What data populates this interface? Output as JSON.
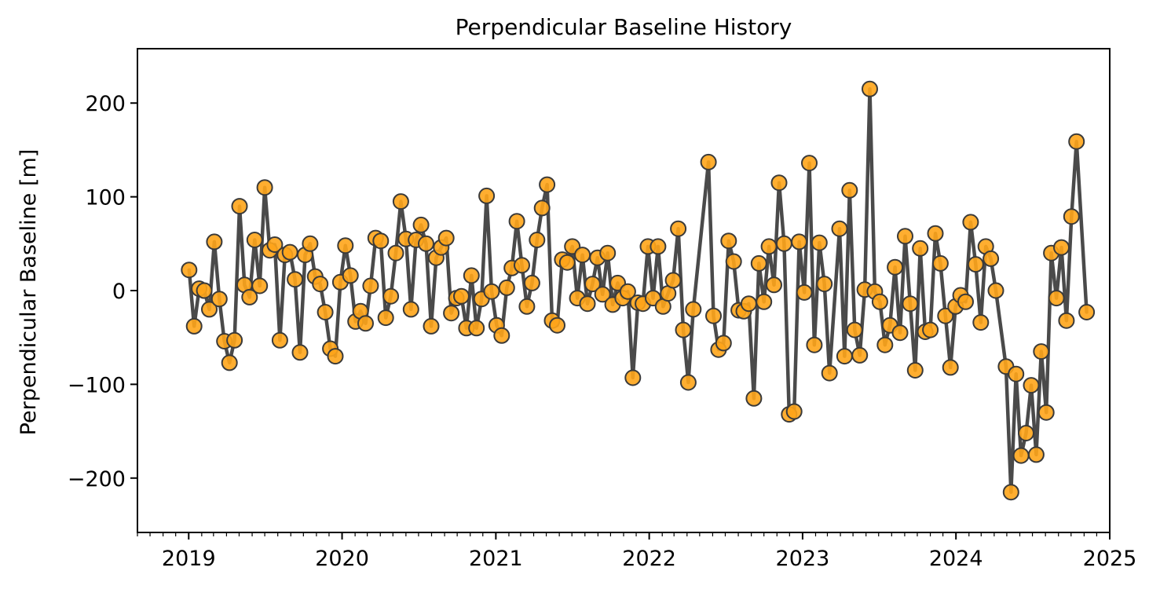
{
  "chart_data": {
    "type": "scatter",
    "title": "Perpendicular Baseline History",
    "xlabel": "",
    "ylabel": "Perpendicular Baseline [m]",
    "xlim": [
      "2018-09-01",
      "2025-01-01"
    ],
    "ylim": [
      -258,
      258
    ],
    "x_ticks": [
      "2019",
      "2020",
      "2021",
      "2022",
      "2023",
      "2024",
      "2025"
    ],
    "y_ticks": [
      {
        "value": -200,
        "label": "−200"
      },
      {
        "value": -100,
        "label": "−100"
      },
      {
        "value": 0,
        "label": "0"
      },
      {
        "value": 100,
        "label": "100"
      },
      {
        "value": 200,
        "label": "200"
      }
    ],
    "grid": false,
    "legend": "none",
    "colors": {
      "line": "#4a4a4a",
      "marker_fill": "#ffa51a",
      "marker_edge": "#3a3a3a"
    },
    "series": [
      {
        "points": [
          {
            "x": "2019-01-02",
            "y": 22
          },
          {
            "x": "2019-01-14",
            "y": -38
          },
          {
            "x": "2019-01-26",
            "y": 2
          },
          {
            "x": "2019-02-07",
            "y": 0
          },
          {
            "x": "2019-02-19",
            "y": -20
          },
          {
            "x": "2019-03-03",
            "y": 52
          },
          {
            "x": "2019-03-15",
            "y": -9
          },
          {
            "x": "2019-03-27",
            "y": -54
          },
          {
            "x": "2019-04-08",
            "y": -77
          },
          {
            "x": "2019-04-20",
            "y": -53
          },
          {
            "x": "2019-05-02",
            "y": 90
          },
          {
            "x": "2019-05-14",
            "y": 6
          },
          {
            "x": "2019-05-26",
            "y": -7
          },
          {
            "x": "2019-06-07",
            "y": 54
          },
          {
            "x": "2019-06-19",
            "y": 5
          },
          {
            "x": "2019-07-01",
            "y": 110
          },
          {
            "x": "2019-07-13",
            "y": 43
          },
          {
            "x": "2019-07-25",
            "y": 49
          },
          {
            "x": "2019-08-06",
            "y": -53
          },
          {
            "x": "2019-08-18",
            "y": 38
          },
          {
            "x": "2019-08-30",
            "y": 41
          },
          {
            "x": "2019-09-11",
            "y": 12
          },
          {
            "x": "2019-09-23",
            "y": -66
          },
          {
            "x": "2019-10-05",
            "y": 38
          },
          {
            "x": "2019-10-17",
            "y": 50
          },
          {
            "x": "2019-10-29",
            "y": 15
          },
          {
            "x": "2019-11-10",
            "y": 7
          },
          {
            "x": "2019-11-22",
            "y": -23
          },
          {
            "x": "2019-12-04",
            "y": -62
          },
          {
            "x": "2019-12-16",
            "y": -70
          },
          {
            "x": "2019-12-28",
            "y": 9
          },
          {
            "x": "2020-01-09",
            "y": 48
          },
          {
            "x": "2020-01-21",
            "y": 16
          },
          {
            "x": "2020-02-02",
            "y": -33
          },
          {
            "x": "2020-02-14",
            "y": -22
          },
          {
            "x": "2020-02-26",
            "y": -35
          },
          {
            "x": "2020-03-09",
            "y": 5
          },
          {
            "x": "2020-03-21",
            "y": 56
          },
          {
            "x": "2020-04-02",
            "y": 53
          },
          {
            "x": "2020-04-14",
            "y": -29
          },
          {
            "x": "2020-04-26",
            "y": -6
          },
          {
            "x": "2020-05-08",
            "y": 40
          },
          {
            "x": "2020-05-20",
            "y": 95
          },
          {
            "x": "2020-06-01",
            "y": 55
          },
          {
            "x": "2020-06-13",
            "y": -20
          },
          {
            "x": "2020-06-25",
            "y": 54
          },
          {
            "x": "2020-07-07",
            "y": 70
          },
          {
            "x": "2020-07-19",
            "y": 50
          },
          {
            "x": "2020-07-31",
            "y": -38
          },
          {
            "x": "2020-08-12",
            "y": 35
          },
          {
            "x": "2020-08-24",
            "y": 46
          },
          {
            "x": "2020-09-05",
            "y": 56
          },
          {
            "x": "2020-09-17",
            "y": -24
          },
          {
            "x": "2020-09-29",
            "y": -8
          },
          {
            "x": "2020-10-11",
            "y": -6
          },
          {
            "x": "2020-10-23",
            "y": -40
          },
          {
            "x": "2020-11-04",
            "y": 16
          },
          {
            "x": "2020-11-16",
            "y": -40
          },
          {
            "x": "2020-11-28",
            "y": -9
          },
          {
            "x": "2020-12-10",
            "y": 101
          },
          {
            "x": "2020-12-22",
            "y": -1
          },
          {
            "x": "2021-01-03",
            "y": -37
          },
          {
            "x": "2021-01-15",
            "y": -48
          },
          {
            "x": "2021-01-27",
            "y": 3
          },
          {
            "x": "2021-02-08",
            "y": 24
          },
          {
            "x": "2021-02-20",
            "y": 74
          },
          {
            "x": "2021-03-04",
            "y": 27
          },
          {
            "x": "2021-03-16",
            "y": -17
          },
          {
            "x": "2021-03-28",
            "y": 8
          },
          {
            "x": "2021-04-09",
            "y": 54
          },
          {
            "x": "2021-04-21",
            "y": 88
          },
          {
            "x": "2021-05-03",
            "y": 113
          },
          {
            "x": "2021-05-15",
            "y": -32
          },
          {
            "x": "2021-05-27",
            "y": -37
          },
          {
            "x": "2021-06-08",
            "y": 33
          },
          {
            "x": "2021-06-20",
            "y": 30
          },
          {
            "x": "2021-07-02",
            "y": 47
          },
          {
            "x": "2021-07-14",
            "y": -8
          },
          {
            "x": "2021-07-26",
            "y": 38
          },
          {
            "x": "2021-08-07",
            "y": -14
          },
          {
            "x": "2021-08-19",
            "y": 7
          },
          {
            "x": "2021-08-31",
            "y": 35
          },
          {
            "x": "2021-09-12",
            "y": -4
          },
          {
            "x": "2021-09-24",
            "y": 40
          },
          {
            "x": "2021-10-06",
            "y": -15
          },
          {
            "x": "2021-10-18",
            "y": 8
          },
          {
            "x": "2021-10-30",
            "y": -8
          },
          {
            "x": "2021-11-11",
            "y": -1
          },
          {
            "x": "2021-11-23",
            "y": -93
          },
          {
            "x": "2021-12-05",
            "y": -13
          },
          {
            "x": "2021-12-17",
            "y": -14
          },
          {
            "x": "2021-12-29",
            "y": 47
          },
          {
            "x": "2022-01-10",
            "y": -8
          },
          {
            "x": "2022-01-22",
            "y": 47
          },
          {
            "x": "2022-02-03",
            "y": -17
          },
          {
            "x": "2022-02-15",
            "y": -3
          },
          {
            "x": "2022-02-27",
            "y": 11
          },
          {
            "x": "2022-03-11",
            "y": 66
          },
          {
            "x": "2022-03-23",
            "y": -42
          },
          {
            "x": "2022-04-04",
            "y": -98
          },
          {
            "x": "2022-04-16",
            "y": -20
          },
          {
            "x": "2022-05-22",
            "y": 137
          },
          {
            "x": "2022-06-03",
            "y": -27
          },
          {
            "x": "2022-06-15",
            "y": -63
          },
          {
            "x": "2022-06-27",
            "y": -56
          },
          {
            "x": "2022-07-09",
            "y": 53
          },
          {
            "x": "2022-07-21",
            "y": 31
          },
          {
            "x": "2022-08-02",
            "y": -21
          },
          {
            "x": "2022-08-14",
            "y": -22
          },
          {
            "x": "2022-08-26",
            "y": -14
          },
          {
            "x": "2022-09-07",
            "y": -115
          },
          {
            "x": "2022-09-19",
            "y": 29
          },
          {
            "x": "2022-10-01",
            "y": -12
          },
          {
            "x": "2022-10-13",
            "y": 47
          },
          {
            "x": "2022-10-25",
            "y": 6
          },
          {
            "x": "2022-11-06",
            "y": 115
          },
          {
            "x": "2022-11-18",
            "y": 50
          },
          {
            "x": "2022-11-30",
            "y": -132
          },
          {
            "x": "2022-12-12",
            "y": -129
          },
          {
            "x": "2022-12-24",
            "y": 52
          },
          {
            "x": "2023-01-05",
            "y": -2
          },
          {
            "x": "2023-01-17",
            "y": 136
          },
          {
            "x": "2023-01-29",
            "y": -58
          },
          {
            "x": "2023-02-10",
            "y": 51
          },
          {
            "x": "2023-02-22",
            "y": 7
          },
          {
            "x": "2023-03-06",
            "y": -88
          },
          {
            "x": "2023-03-30",
            "y": 66
          },
          {
            "x": "2023-04-11",
            "y": -70
          },
          {
            "x": "2023-04-23",
            "y": 107
          },
          {
            "x": "2023-05-05",
            "y": -42
          },
          {
            "x": "2023-05-17",
            "y": -69
          },
          {
            "x": "2023-05-29",
            "y": 1
          },
          {
            "x": "2023-06-10",
            "y": 215
          },
          {
            "x": "2023-06-22",
            "y": -1
          },
          {
            "x": "2023-07-04",
            "y": -12
          },
          {
            "x": "2023-07-16",
            "y": -58
          },
          {
            "x": "2023-07-28",
            "y": -37
          },
          {
            "x": "2023-08-09",
            "y": 25
          },
          {
            "x": "2023-08-21",
            "y": -45
          },
          {
            "x": "2023-09-02",
            "y": 58
          },
          {
            "x": "2023-09-14",
            "y": -14
          },
          {
            "x": "2023-09-26",
            "y": -85
          },
          {
            "x": "2023-10-08",
            "y": 45
          },
          {
            "x": "2023-10-20",
            "y": -44
          },
          {
            "x": "2023-11-01",
            "y": -42
          },
          {
            "x": "2023-11-13",
            "y": 61
          },
          {
            "x": "2023-11-25",
            "y": 29
          },
          {
            "x": "2023-12-07",
            "y": -27
          },
          {
            "x": "2023-12-19",
            "y": -82
          },
          {
            "x": "2023-12-31",
            "y": -17
          },
          {
            "x": "2024-01-12",
            "y": -5
          },
          {
            "x": "2024-01-24",
            "y": -12
          },
          {
            "x": "2024-02-05",
            "y": 73
          },
          {
            "x": "2024-02-17",
            "y": 28
          },
          {
            "x": "2024-02-29",
            "y": -34
          },
          {
            "x": "2024-03-12",
            "y": 47
          },
          {
            "x": "2024-03-24",
            "y": 34
          },
          {
            "x": "2024-04-05",
            "y": 0
          },
          {
            "x": "2024-04-29",
            "y": -81
          },
          {
            "x": "2024-05-11",
            "y": -215
          },
          {
            "x": "2024-05-23",
            "y": -89
          },
          {
            "x": "2024-06-04",
            "y": -176
          },
          {
            "x": "2024-06-16",
            "y": -152
          },
          {
            "x": "2024-06-28",
            "y": -101
          },
          {
            "x": "2024-07-10",
            "y": -175
          },
          {
            "x": "2024-07-22",
            "y": -65
          },
          {
            "x": "2024-08-03",
            "y": -130
          },
          {
            "x": "2024-08-15",
            "y": 40
          },
          {
            "x": "2024-08-27",
            "y": -8
          },
          {
            "x": "2024-09-08",
            "y": 46
          },
          {
            "x": "2024-09-20",
            "y": -32
          },
          {
            "x": "2024-10-02",
            "y": 79
          },
          {
            "x": "2024-10-14",
            "y": 159
          },
          {
            "x": "2024-11-07",
            "y": -23
          }
        ]
      }
    ]
  }
}
